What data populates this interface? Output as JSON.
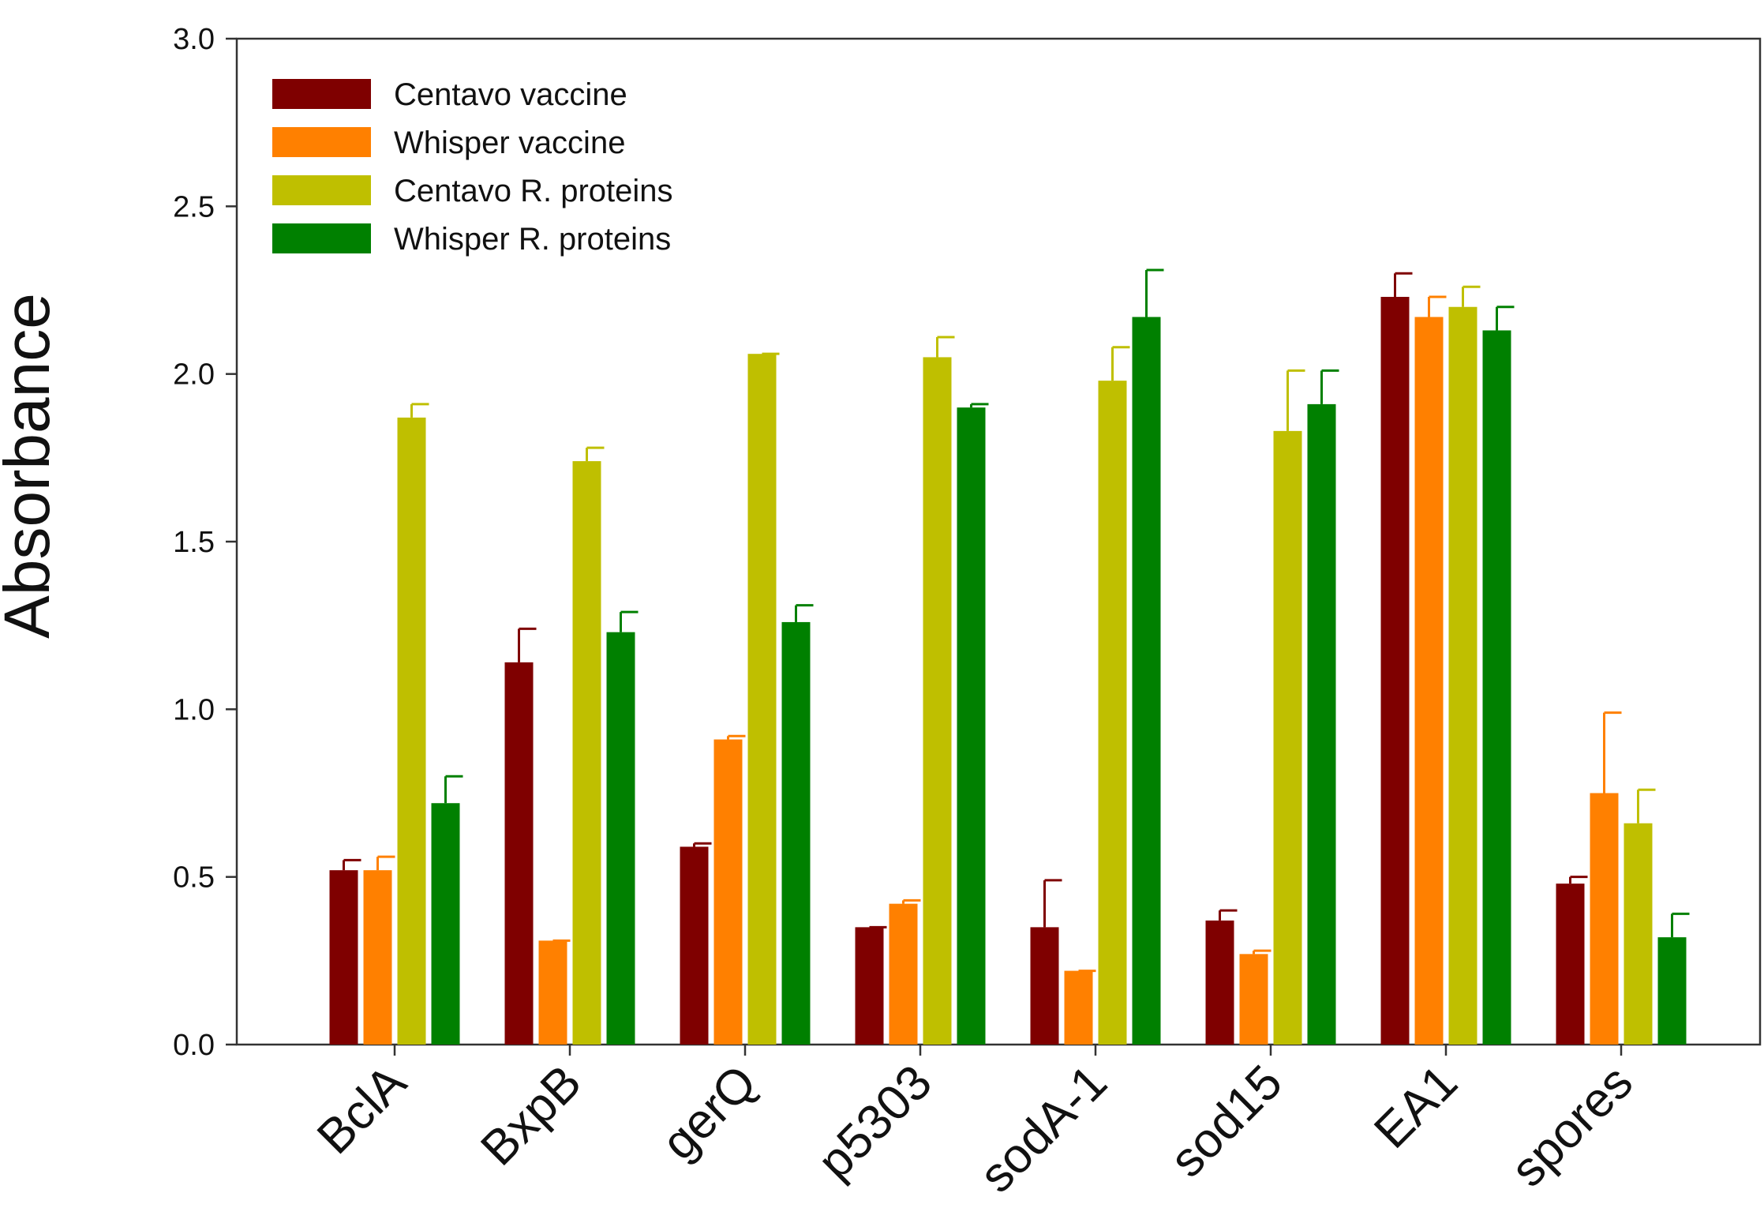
{
  "chart_data": {
    "type": "bar",
    "title": "",
    "xlabel": "",
    "ylabel": "Absorbance",
    "ylim": [
      0,
      3.0
    ],
    "yticks": [
      "0.0",
      "0.5",
      "1.0",
      "1.5",
      "2.0",
      "2.5",
      "3.0"
    ],
    "grid": false,
    "legend_position": "top-left",
    "categories": [
      "BclA",
      "BxpB",
      "gerQ",
      "p5303",
      "sodA-1",
      "sod15",
      "EA1",
      "spores"
    ],
    "series": [
      {
        "name": "Centavo vaccine",
        "color": "#7f0000",
        "values": [
          0.52,
          1.14,
          0.59,
          0.35,
          0.35,
          0.37,
          2.23,
          0.48
        ],
        "errors": [
          0.03,
          0.1,
          0.01,
          0.0,
          0.14,
          0.03,
          0.07,
          0.02
        ]
      },
      {
        "name": "Whisper vaccine",
        "color": "#ff8000",
        "values": [
          0.52,
          0.31,
          0.91,
          0.42,
          0.22,
          0.27,
          2.17,
          0.75
        ],
        "errors": [
          0.04,
          0.0,
          0.01,
          0.01,
          0.0,
          0.01,
          0.06,
          0.24
        ]
      },
      {
        "name": "Centavo R. proteins",
        "color": "#bfbf00",
        "values": [
          1.87,
          1.74,
          2.06,
          2.05,
          1.98,
          1.83,
          2.2,
          0.66
        ],
        "errors": [
          0.04,
          0.04,
          0.0,
          0.06,
          0.1,
          0.18,
          0.06,
          0.1
        ]
      },
      {
        "name": "Whisper R. proteins",
        "color": "#008000",
        "values": [
          0.72,
          1.23,
          1.26,
          1.9,
          2.17,
          1.91,
          2.13,
          0.32
        ],
        "errors": [
          0.08,
          0.06,
          0.05,
          0.01,
          0.14,
          0.1,
          0.07,
          0.07
        ]
      }
    ]
  }
}
